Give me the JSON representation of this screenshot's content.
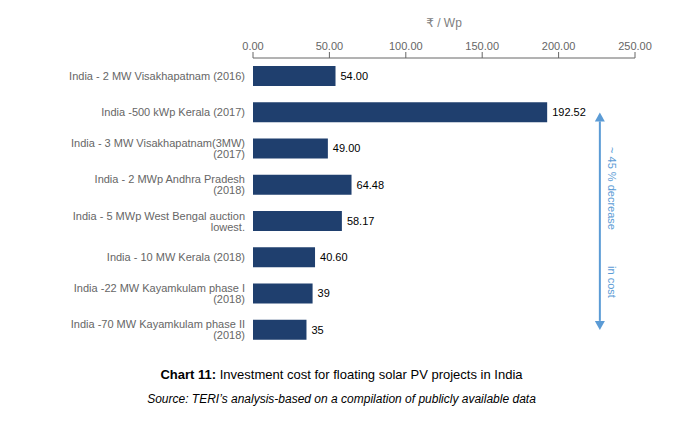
{
  "chart_data": {
    "type": "bar",
    "orientation": "horizontal",
    "title": "Chart 11: Investment cost for floating solar PV projects in India",
    "x_label": "₹ / Wp",
    "categories": [
      "India - 2 MW Visakhapatnam (2016)",
      "India -500 kWp Kerala (2017)",
      "India - 3 MW Visakhapatnam(3MW) (2017)",
      "India - 2 MWp Andhra Pradesh (2018)",
      "India - 5 MWp West Bengal auction lowest.",
      "India - 10 MW Kerala (2018)",
      "India -22 MW Kayamkulam phase I (2018)",
      "India -70 MW Kayamkulam phase II (2018)"
    ],
    "values": [
      54.0,
      192.52,
      49.0,
      64.48,
      58.17,
      40.6,
      39,
      35
    ],
    "value_labels": [
      "54.00",
      "192.52",
      "49.00",
      "64.48",
      "58.17",
      "40.60",
      "39",
      "35"
    ],
    "data_labels": true,
    "color": "#1f3f6e",
    "xlim": [
      0,
      250
    ],
    "xticks": [
      {
        "value": 0,
        "label": "0.00"
      },
      {
        "value": 50,
        "label": "50.00"
      },
      {
        "value": 100,
        "label": "100.00"
      },
      {
        "value": 150,
        "label": "150.00"
      },
      {
        "value": 200,
        "label": "200.00"
      },
      {
        "value": 250,
        "label": "250.00"
      }
    ],
    "grid": false,
    "annotations": [
      {
        "lines": [
          "~ 45 % decrease",
          "in cost"
        ],
        "x": 227,
        "from": "India -500 kWp Kerala (2017)",
        "to": "India -70 MW Kayamkulam phase II (2018)",
        "color": "#5b9bd5"
      },
      {
        "text": "Source: TERI’s analysis-based on a compilation of publicly available data"
      }
    ]
  }
}
